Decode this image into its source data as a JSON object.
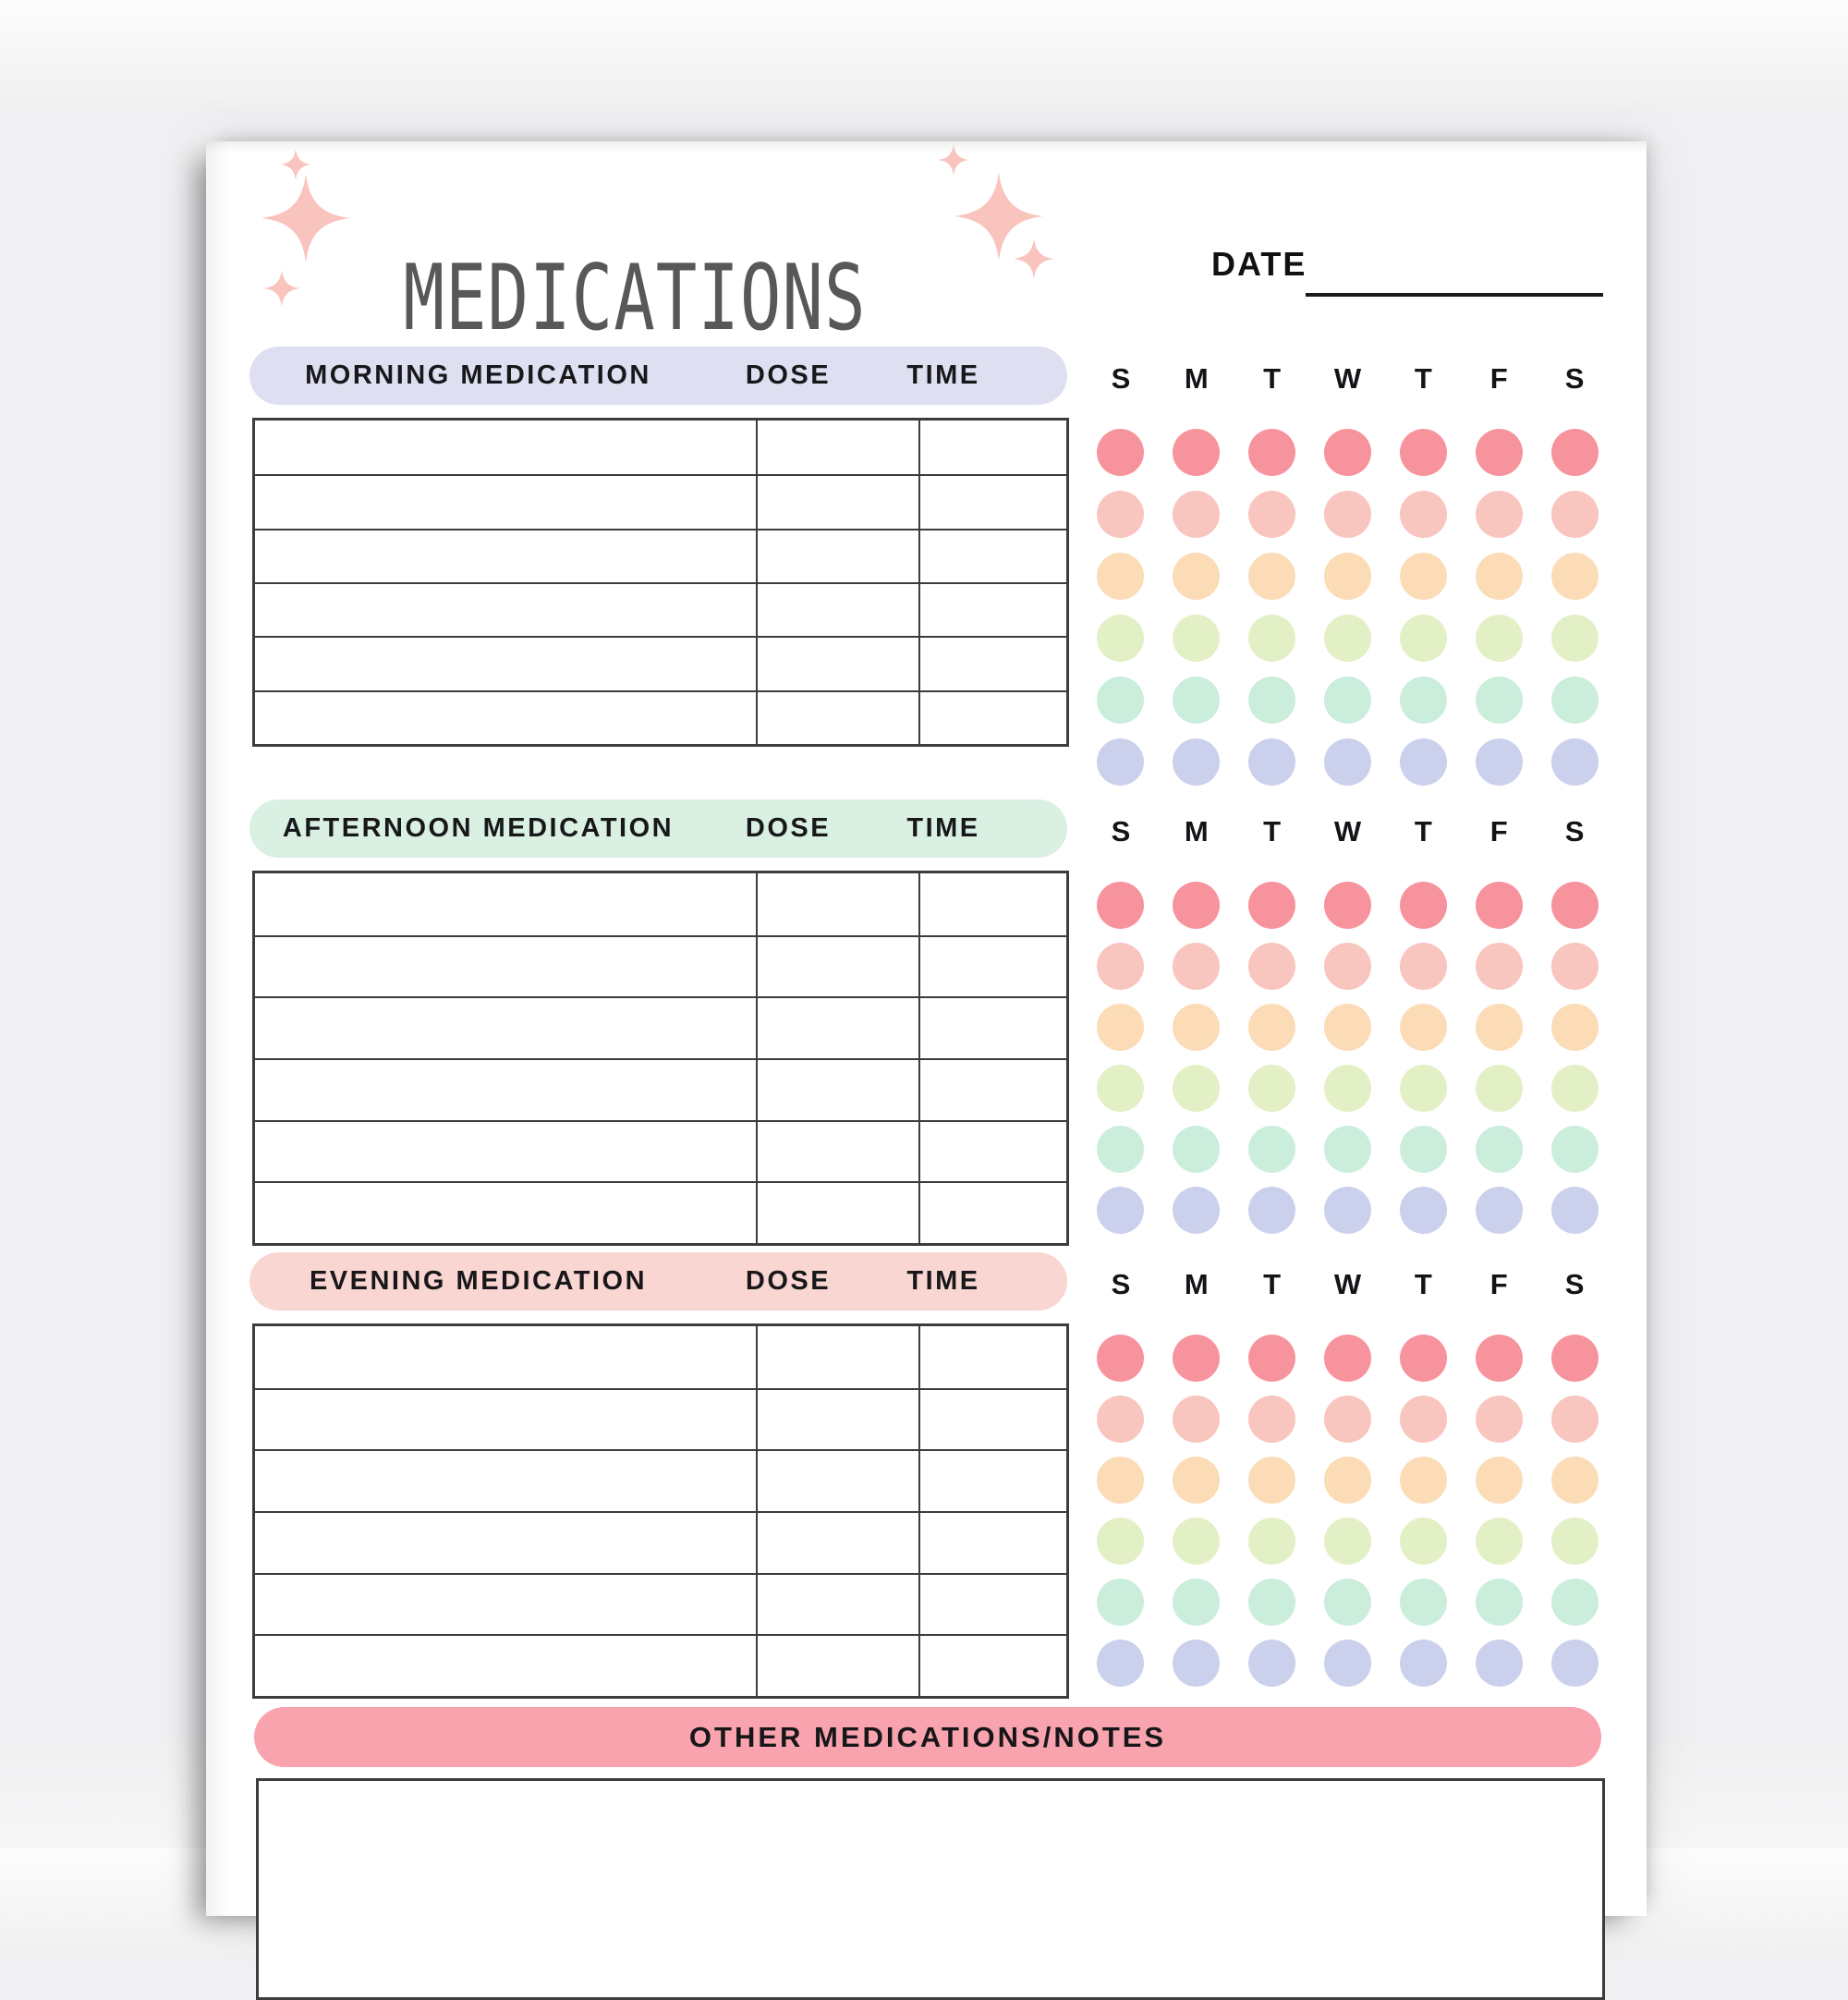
{
  "page": {
    "title": "MEDICATIONS",
    "date_label": "DATE",
    "date_value": ""
  },
  "day_headers": [
    "S",
    "M",
    "T",
    "W",
    "T",
    "F",
    "S"
  ],
  "sections": [
    {
      "header": "MORNING MEDICATION",
      "dose_label": "DOSE",
      "time_label": "TIME",
      "header_bg": "#DEE0F2",
      "rows": 6
    },
    {
      "header": "AFTERNOON MEDICATION",
      "dose_label": "DOSE",
      "time_label": "TIME",
      "header_bg": "#D9F0E3",
      "rows": 6
    },
    {
      "header": "EVENING MEDICATION",
      "dose_label": "DOSE",
      "time_label": "TIME",
      "header_bg": "#FAD6D3",
      "rows": 6
    }
  ],
  "notes": {
    "header": "OTHER MEDICATIONS/NOTES",
    "header_bg": "#F9A3AE",
    "value": ""
  },
  "dot_colors": [
    "#F7939D",
    "#F9C5BF",
    "#FBDCB7",
    "#E3F0C6",
    "#CBEDDC",
    "#CBD1EC"
  ],
  "decor": {
    "sparkle_color": "#F9C4BD",
    "title_color": "#58585A"
  }
}
